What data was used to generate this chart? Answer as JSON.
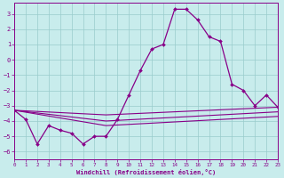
{
  "xlabel": "Windchill (Refroidissement éolien,°C)",
  "xlim": [
    0,
    23
  ],
  "ylim": [
    -6.5,
    3.7
  ],
  "yticks": [
    3,
    2,
    1,
    0,
    -1,
    -2,
    -3,
    -4,
    -5,
    -6
  ],
  "xticks": [
    0,
    1,
    2,
    3,
    4,
    5,
    6,
    7,
    8,
    9,
    10,
    11,
    12,
    13,
    14,
    15,
    16,
    17,
    18,
    19,
    20,
    21,
    22,
    23
  ],
  "bg_color": "#c8ecec",
  "line_color": "#880088",
  "grid_color": "#99cccc",
  "line1_x": [
    0,
    1,
    2,
    3,
    4,
    5,
    6,
    7,
    8,
    9,
    10,
    11,
    12,
    13,
    14,
    15,
    16,
    17,
    18,
    19,
    20,
    21,
    22,
    23
  ],
  "line1_y": [
    -3.3,
    -3.9,
    -5.5,
    -4.3,
    -4.6,
    -4.8,
    -5.5,
    -5.0,
    -5.0,
    -3.9,
    -2.3,
    -0.7,
    0.7,
    1.0,
    3.3,
    3.3,
    2.6,
    1.5,
    1.2,
    -1.6,
    -2.0,
    -3.0,
    -2.3,
    -3.1
  ],
  "line2_x": [
    0,
    8,
    23
  ],
  "line2_y": [
    -3.3,
    -3.6,
    -3.1
  ],
  "line3_x": [
    0,
    8,
    23
  ],
  "line3_y": [
    -3.3,
    -4.0,
    -3.4
  ],
  "line4_x": [
    0,
    8,
    23
  ],
  "line4_y": [
    -3.3,
    -4.3,
    -3.7
  ]
}
